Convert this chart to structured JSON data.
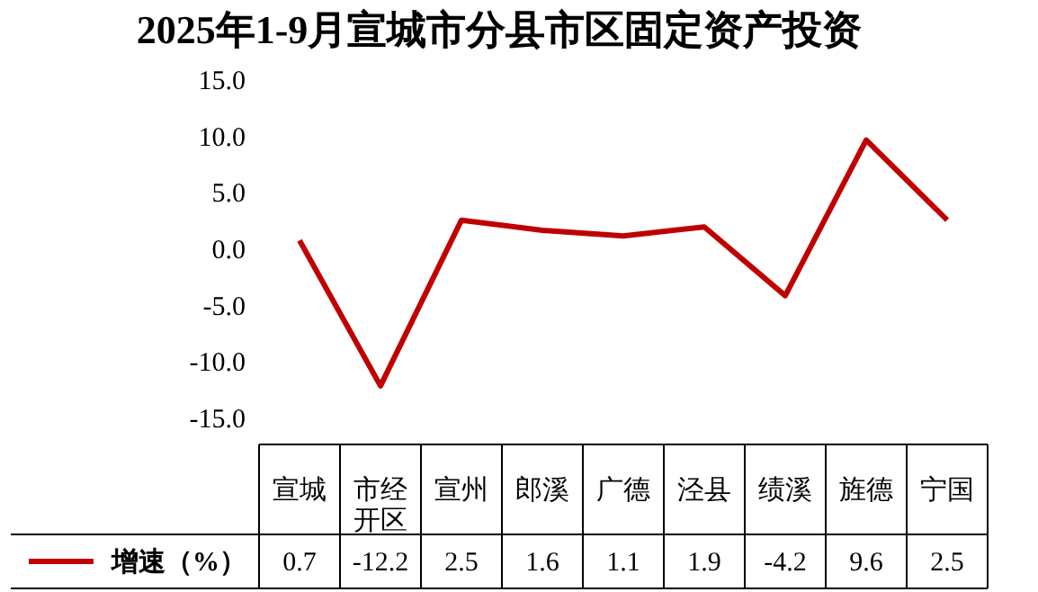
{
  "chart_data": {
    "type": "line",
    "title": "2025年1-9月宣城市分县市区固定资产投资",
    "categories": [
      "宣城",
      "市经开区",
      "宣州",
      "郎溪",
      "广德",
      "泾县",
      "绩溪",
      "旌德",
      "宁国"
    ],
    "series": [
      {
        "name": "增速（%）",
        "color": "#c00000",
        "values": [
          0.7,
          -12.2,
          2.5,
          1.6,
          1.1,
          1.9,
          -4.2,
          9.6,
          2.5
        ]
      }
    ],
    "ylim": [
      -15,
      15
    ],
    "yticks": [
      {
        "value": -15,
        "label": "-15.0"
      },
      {
        "value": -10,
        "label": "-10.0"
      },
      {
        "value": -5,
        "label": "-5.0"
      },
      {
        "value": 0,
        "label": "0.0"
      },
      {
        "value": 5,
        "label": "5.0"
      },
      {
        "value": 10,
        "label": "10.0"
      },
      {
        "value": 15,
        "label": "15.0"
      }
    ],
    "data_labels": true,
    "legend": "bottom",
    "grid": false,
    "marker": "none",
    "line_style": "solid"
  }
}
